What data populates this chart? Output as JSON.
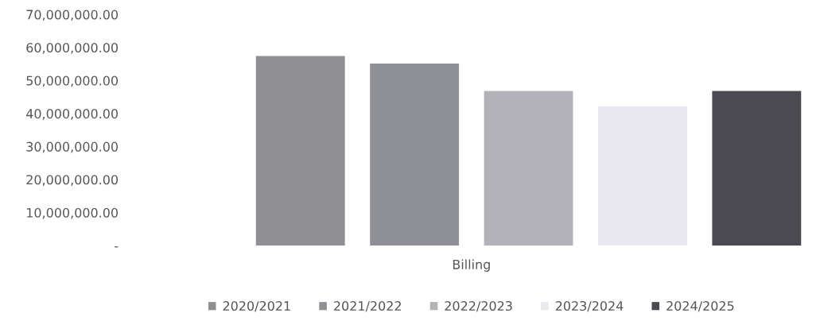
{
  "chart_data": {
    "type": "bar",
    "categories": [
      null
    ],
    "xlabel": "Billing",
    "series": [
      {
        "name": "2020/2021",
        "color": "#8e8e93",
        "values": [
          57400000
        ]
      },
      {
        "name": "2021/2022",
        "color": "#8f8f96",
        "values": [
          55100000
        ]
      },
      {
        "name": "2022/2023",
        "color": "#b3b2b9",
        "values": [
          46800000
        ]
      },
      {
        "name": "2023/2024",
        "color": "#e9e8ef",
        "values": [
          42200000
        ]
      },
      {
        "name": "2024/2025",
        "color": "#4a4a50",
        "values": [
          46800000
        ]
      }
    ],
    "ylim": [
      0,
      70000000
    ],
    "yticks": [
      {
        "value": 0,
        "label": "-"
      },
      {
        "value": 10000000,
        "label": "10,000,000.00"
      },
      {
        "value": 20000000,
        "label": "20,000,000.00"
      },
      {
        "value": 30000000,
        "label": "30,000,000.00"
      },
      {
        "value": 40000000,
        "label": "40,000,000.00"
      },
      {
        "value": 50000000,
        "label": "50,000,000.00"
      },
      {
        "value": 60000000,
        "label": "60,000,000.00"
      },
      {
        "value": 70000000,
        "label": "70,000,000.00"
      }
    ],
    "grid": false,
    "legend": "bottom"
  }
}
